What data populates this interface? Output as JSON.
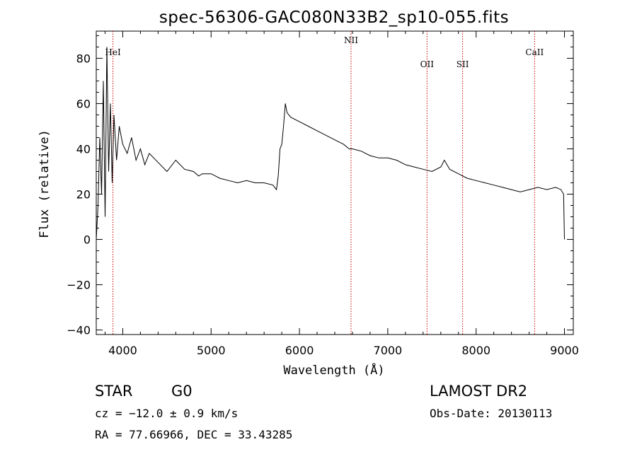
{
  "chart_data": {
    "type": "line",
    "title": "spec-56306-GAC080N33B2_sp10-055.fits",
    "xlabel": "Wavelength (Å)",
    "ylabel": "Flux (relative)",
    "xlim": [
      3700,
      9100
    ],
    "ylim": [
      -42,
      92
    ],
    "x_ticks": [
      4000,
      5000,
      6000,
      7000,
      8000,
      9000
    ],
    "y_ticks": [
      -40,
      -20,
      0,
      20,
      40,
      60,
      80
    ],
    "grid": false,
    "series": [
      {
        "x": [
          3700,
          3720,
          3740,
          3760,
          3780,
          3800,
          3820,
          3840,
          3860,
          3880,
          3900,
          3930,
          3960,
          4000,
          4050,
          4100,
          4150,
          4200,
          4250,
          4300,
          4400,
          4500,
          4600,
          4700,
          4800,
          4860,
          4900,
          5000,
          5100,
          5200,
          5300,
          5400,
          5500,
          5600,
          5700,
          5740,
          5760,
          5780,
          5800,
          5820,
          5840,
          5860,
          5900,
          6000,
          6100,
          6200,
          6300,
          6400,
          6500,
          6563,
          6600,
          6700,
          6800,
          6900,
          7000,
          7100,
          7200,
          7300,
          7400,
          7500,
          7600,
          7640,
          7700,
          7800,
          7900,
          8000,
          8100,
          8200,
          8300,
          8400,
          8500,
          8600,
          8700,
          8800,
          8900,
          8960,
          8990,
          9000
        ],
        "y": [
          0,
          15,
          45,
          20,
          70,
          10,
          85,
          30,
          60,
          25,
          55,
          35,
          50,
          42,
          38,
          45,
          35,
          40,
          33,
          38,
          34,
          30,
          35,
          31,
          30,
          28,
          29,
          29,
          27,
          26,
          25,
          26,
          25,
          25,
          24,
          22,
          28,
          40,
          42,
          50,
          60,
          56,
          54,
          52,
          50,
          48,
          46,
          44,
          42,
          40,
          40,
          39,
          37,
          36,
          36,
          35,
          33,
          32,
          31,
          30,
          32,
          35,
          31,
          29,
          27,
          26,
          25,
          24,
          23,
          22,
          21,
          22,
          23,
          22,
          23,
          22,
          20,
          0
        ]
      }
    ],
    "annotations": [
      {
        "label": "HeI",
        "x": 3889
      },
      {
        "label": "NII",
        "x": 6584
      },
      {
        "label": "OII",
        "x": 7444
      },
      {
        "label": "SII",
        "x": 7847
      },
      {
        "label": "CaII",
        "x": 8662
      }
    ]
  },
  "info": {
    "object_class": "STAR",
    "subclass": "G0",
    "survey": "LAMOST DR2",
    "cz": "cz = −12.0 ± 0.9 km/s",
    "obs_date": "Obs-Date: 20130113",
    "coords": "RA =  77.66966, DEC =  33.43285"
  },
  "colors": {
    "spectrum": "#000000",
    "line_marker": "#cc0000",
    "axes": "#000000"
  }
}
